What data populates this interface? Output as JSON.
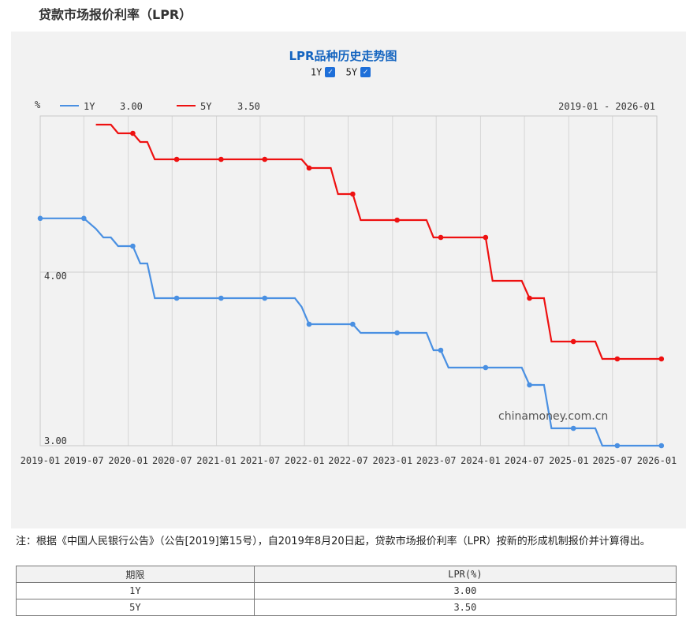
{
  "page_title": "贷款市场报价利率（LPR）",
  "legend_toggles": [
    {
      "label": "1Y",
      "checked": true
    },
    {
      "label": "5Y",
      "checked": true
    }
  ],
  "checkmark": "✓",
  "header": {
    "unit": "%",
    "date_range": "2019-01 - 2026-01"
  },
  "watermark": "chinamoney.com.cn",
  "slider_handle_glyph": "||",
  "note": "注：根据《中国人民银行公告》（公告[2019]第15号），自2019年8月20日起，贷款市场报价利率（LPR）按新的形成机制报价并计算得出。",
  "table": {
    "headers": [
      "期限",
      "LPR(%)"
    ],
    "rows": [
      [
        "1Y",
        "3.00"
      ],
      [
        "5Y",
        "3.50"
      ]
    ]
  },
  "colors": {
    "series_1y": "#4a90e2",
    "series_5y": "#ee1111",
    "title": "#1565c0"
  },
  "chart_data": {
    "type": "line",
    "title": "LPR品种历史走势图",
    "ylabel": "%",
    "ylim": [
      3.0,
      4.9
    ],
    "yticks": [
      "3.00",
      "4.00"
    ],
    "xlim": [
      "2019-01",
      "2026-01"
    ],
    "xticks": [
      "2019-01",
      "2019-07",
      "2020-01",
      "2020-07",
      "2021-01",
      "2021-07",
      "2022-01",
      "2022-07",
      "2023-01",
      "2023-07",
      "2024-01",
      "2024-07",
      "2025-01",
      "2025-07",
      "2026-01"
    ],
    "grid": true,
    "legend_position": "top-left",
    "series": [
      {
        "name": "1Y",
        "last_value": "3.00",
        "color": "#4a90e2",
        "points": [
          [
            "2019-01-01",
            4.31
          ],
          [
            "2019-07-01",
            4.31
          ],
          [
            "2019-08-20",
            4.25
          ],
          [
            "2019-09-20",
            4.2
          ],
          [
            "2019-10-21",
            4.2
          ],
          [
            "2019-11-20",
            4.15
          ],
          [
            "2020-01-20",
            4.15
          ],
          [
            "2020-02-20",
            4.05
          ],
          [
            "2020-03-20",
            4.05
          ],
          [
            "2020-04-20",
            3.85
          ],
          [
            "2020-07-20",
            3.85
          ],
          [
            "2021-01-20",
            3.85
          ],
          [
            "2021-07-20",
            3.85
          ],
          [
            "2021-11-22",
            3.85
          ],
          [
            "2021-12-20",
            3.8
          ],
          [
            "2022-01-20",
            3.7
          ],
          [
            "2022-07-20",
            3.7
          ],
          [
            "2022-08-22",
            3.65
          ],
          [
            "2023-01-20",
            3.65
          ],
          [
            "2023-05-22",
            3.65
          ],
          [
            "2023-06-20",
            3.55
          ],
          [
            "2023-07-20",
            3.55
          ],
          [
            "2023-08-21",
            3.45
          ],
          [
            "2024-01-22",
            3.45
          ],
          [
            "2024-06-20",
            3.45
          ],
          [
            "2024-07-22",
            3.35
          ],
          [
            "2024-09-20",
            3.35
          ],
          [
            "2024-10-21",
            3.1
          ],
          [
            "2025-01-20",
            3.1
          ],
          [
            "2025-04-21",
            3.1
          ],
          [
            "2025-05-20",
            3.0
          ],
          [
            "2025-07-21",
            3.0
          ],
          [
            "2026-01-20",
            3.0
          ]
        ]
      },
      {
        "name": "5Y",
        "last_value": "3.50",
        "color": "#ee1111",
        "points": [
          [
            "2019-08-20",
            4.85
          ],
          [
            "2019-09-20",
            4.85
          ],
          [
            "2019-10-21",
            4.85
          ],
          [
            "2019-11-20",
            4.8
          ],
          [
            "2020-01-20",
            4.8
          ],
          [
            "2020-02-20",
            4.75
          ],
          [
            "2020-03-20",
            4.75
          ],
          [
            "2020-04-20",
            4.65
          ],
          [
            "2020-07-20",
            4.65
          ],
          [
            "2021-01-20",
            4.65
          ],
          [
            "2021-07-20",
            4.65
          ],
          [
            "2021-12-20",
            4.65
          ],
          [
            "2022-01-20",
            4.6
          ],
          [
            "2022-04-20",
            4.6
          ],
          [
            "2022-05-20",
            4.45
          ],
          [
            "2022-07-20",
            4.45
          ],
          [
            "2022-08-22",
            4.3
          ],
          [
            "2023-01-20",
            4.3
          ],
          [
            "2023-05-22",
            4.3
          ],
          [
            "2023-06-20",
            4.2
          ],
          [
            "2023-07-20",
            4.2
          ],
          [
            "2024-01-22",
            4.2
          ],
          [
            "2024-02-20",
            3.95
          ],
          [
            "2024-06-20",
            3.95
          ],
          [
            "2024-07-22",
            3.85
          ],
          [
            "2024-09-20",
            3.85
          ],
          [
            "2024-10-21",
            3.6
          ],
          [
            "2025-01-20",
            3.6
          ],
          [
            "2025-04-21",
            3.6
          ],
          [
            "2025-05-20",
            3.5
          ],
          [
            "2025-07-21",
            3.5
          ],
          [
            "2026-01-20",
            3.5
          ]
        ]
      }
    ],
    "dot_dates": {
      "1Y": [
        "2019-01-01",
        "2019-07-01",
        "2020-01-20",
        "2020-07-20",
        "2021-01-20",
        "2021-07-20",
        "2022-01-20",
        "2022-07-20",
        "2023-01-20",
        "2023-07-20",
        "2024-01-22",
        "2024-07-22",
        "2025-01-20",
        "2025-07-21",
        "2026-01-20"
      ],
      "5Y": [
        "2020-01-20",
        "2020-07-20",
        "2021-01-20",
        "2021-07-20",
        "2022-01-20",
        "2022-07-20",
        "2023-01-20",
        "2023-07-20",
        "2024-01-22",
        "2024-07-22",
        "2025-01-20",
        "2025-07-21",
        "2026-01-20"
      ]
    }
  }
}
